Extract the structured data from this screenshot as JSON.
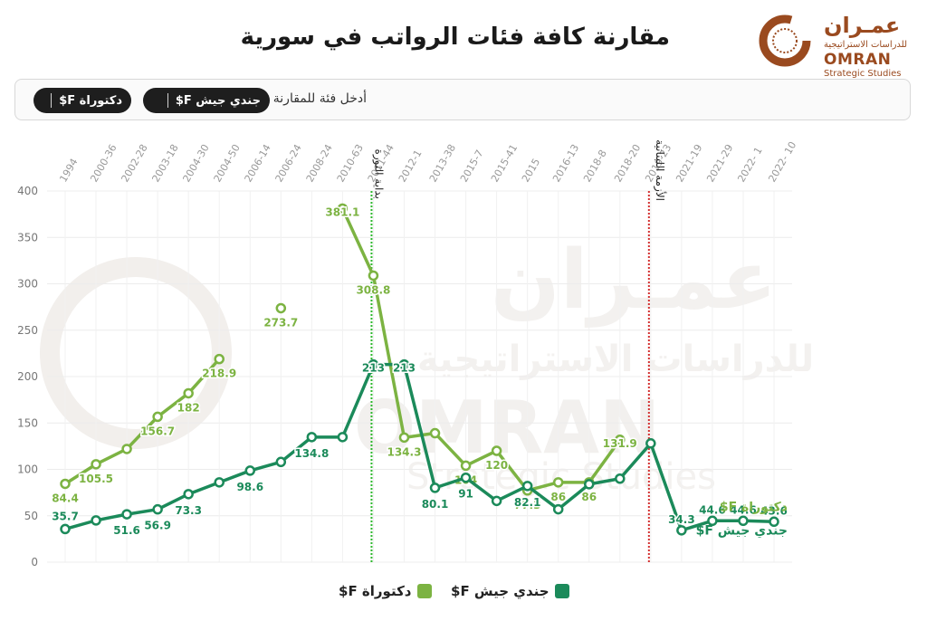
{
  "header": {
    "title": "مقارنة كافة فئات الرواتب في سورية"
  },
  "logo": {
    "arabic": "عمـران",
    "arabic_sub": "للدراسات الاستراتيجية",
    "english": "OMRAN",
    "english_sub": "Strategic Studies"
  },
  "selector": {
    "label": "أدخل فئة للمقارنة",
    "chips": [
      "جندي جيش F$",
      "دكتوراة F$"
    ]
  },
  "legend": {
    "army": "جندي جيش F$",
    "doctorate": "دكتوراة F$"
  },
  "colors": {
    "doctorate": "#7cb342",
    "army": "#1b8a5a",
    "revolution_line": "#2db82d",
    "crisis_line": "#d32f2f",
    "logo": "#9a4a1f"
  },
  "chart_data": {
    "type": "line",
    "x": [
      "1994",
      "2000-36",
      "2002-28",
      "2003-18",
      "2004-30",
      "2004-50",
      "2006-14",
      "2006-24",
      "2008-24",
      "2010-63",
      "2011-44",
      "2012-1",
      "2013-38",
      "2015-7",
      "2015-41",
      "2015",
      "2016-13",
      "2018-8",
      "2018-20",
      "2019-23",
      "2021-19",
      "2021-29",
      "2022- 1",
      "2022- 10"
    ],
    "ylim": [
      0,
      400
    ],
    "yticks": [
      0,
      50,
      100,
      150,
      200,
      250,
      300,
      350,
      400
    ],
    "series": [
      {
        "name": "دكتوراة F$",
        "values": [
          84.4,
          105.5,
          122,
          156.7,
          182,
          218.9,
          null,
          273.7,
          null,
          381.1,
          308.8,
          134.3,
          139,
          104,
          120,
          77.3,
          86,
          86,
          131.9,
          null,
          null,
          null,
          null,
          null
        ],
        "labels": [
          "84.4",
          "105.5",
          null,
          "156.7",
          "182",
          "218.9",
          null,
          "273.7",
          null,
          "381.1",
          "308.8",
          "134.3",
          null,
          "104",
          "120",
          "77.3",
          "86",
          "86",
          "131.9",
          null,
          null,
          null,
          null,
          null
        ]
      },
      {
        "name": "جندي جيش F$",
        "values": [
          35.7,
          45,
          51.6,
          56.9,
          73.3,
          86,
          98.6,
          108,
          134.8,
          134.8,
          213,
          213,
          80.1,
          91,
          66,
          82.1,
          57,
          84,
          90,
          128,
          34.3,
          44.6,
          44.6,
          43.6
        ],
        "labels": [
          "35.7",
          null,
          "51.6",
          "56.9",
          "73.3",
          null,
          "98.6",
          null,
          "134.8",
          null,
          "213",
          "213",
          "80.1",
          "91",
          null,
          "82.1",
          null,
          null,
          null,
          null,
          "34.3",
          "44.6",
          "44.6",
          "43.6"
        ]
      }
    ],
    "annotations": [
      {
        "text": "بداية الثورة",
        "x": "2011-44"
      },
      {
        "text": "الأزمة اللبنانية",
        "x": "2019-23"
      }
    ],
    "end_labels": [
      "دكتوراة F$",
      "جندي جيش F$"
    ],
    "watermark": [
      "عمـران",
      "للدراسات الاستراتيجية",
      "OMRAN",
      "Strategic Studies"
    ]
  }
}
